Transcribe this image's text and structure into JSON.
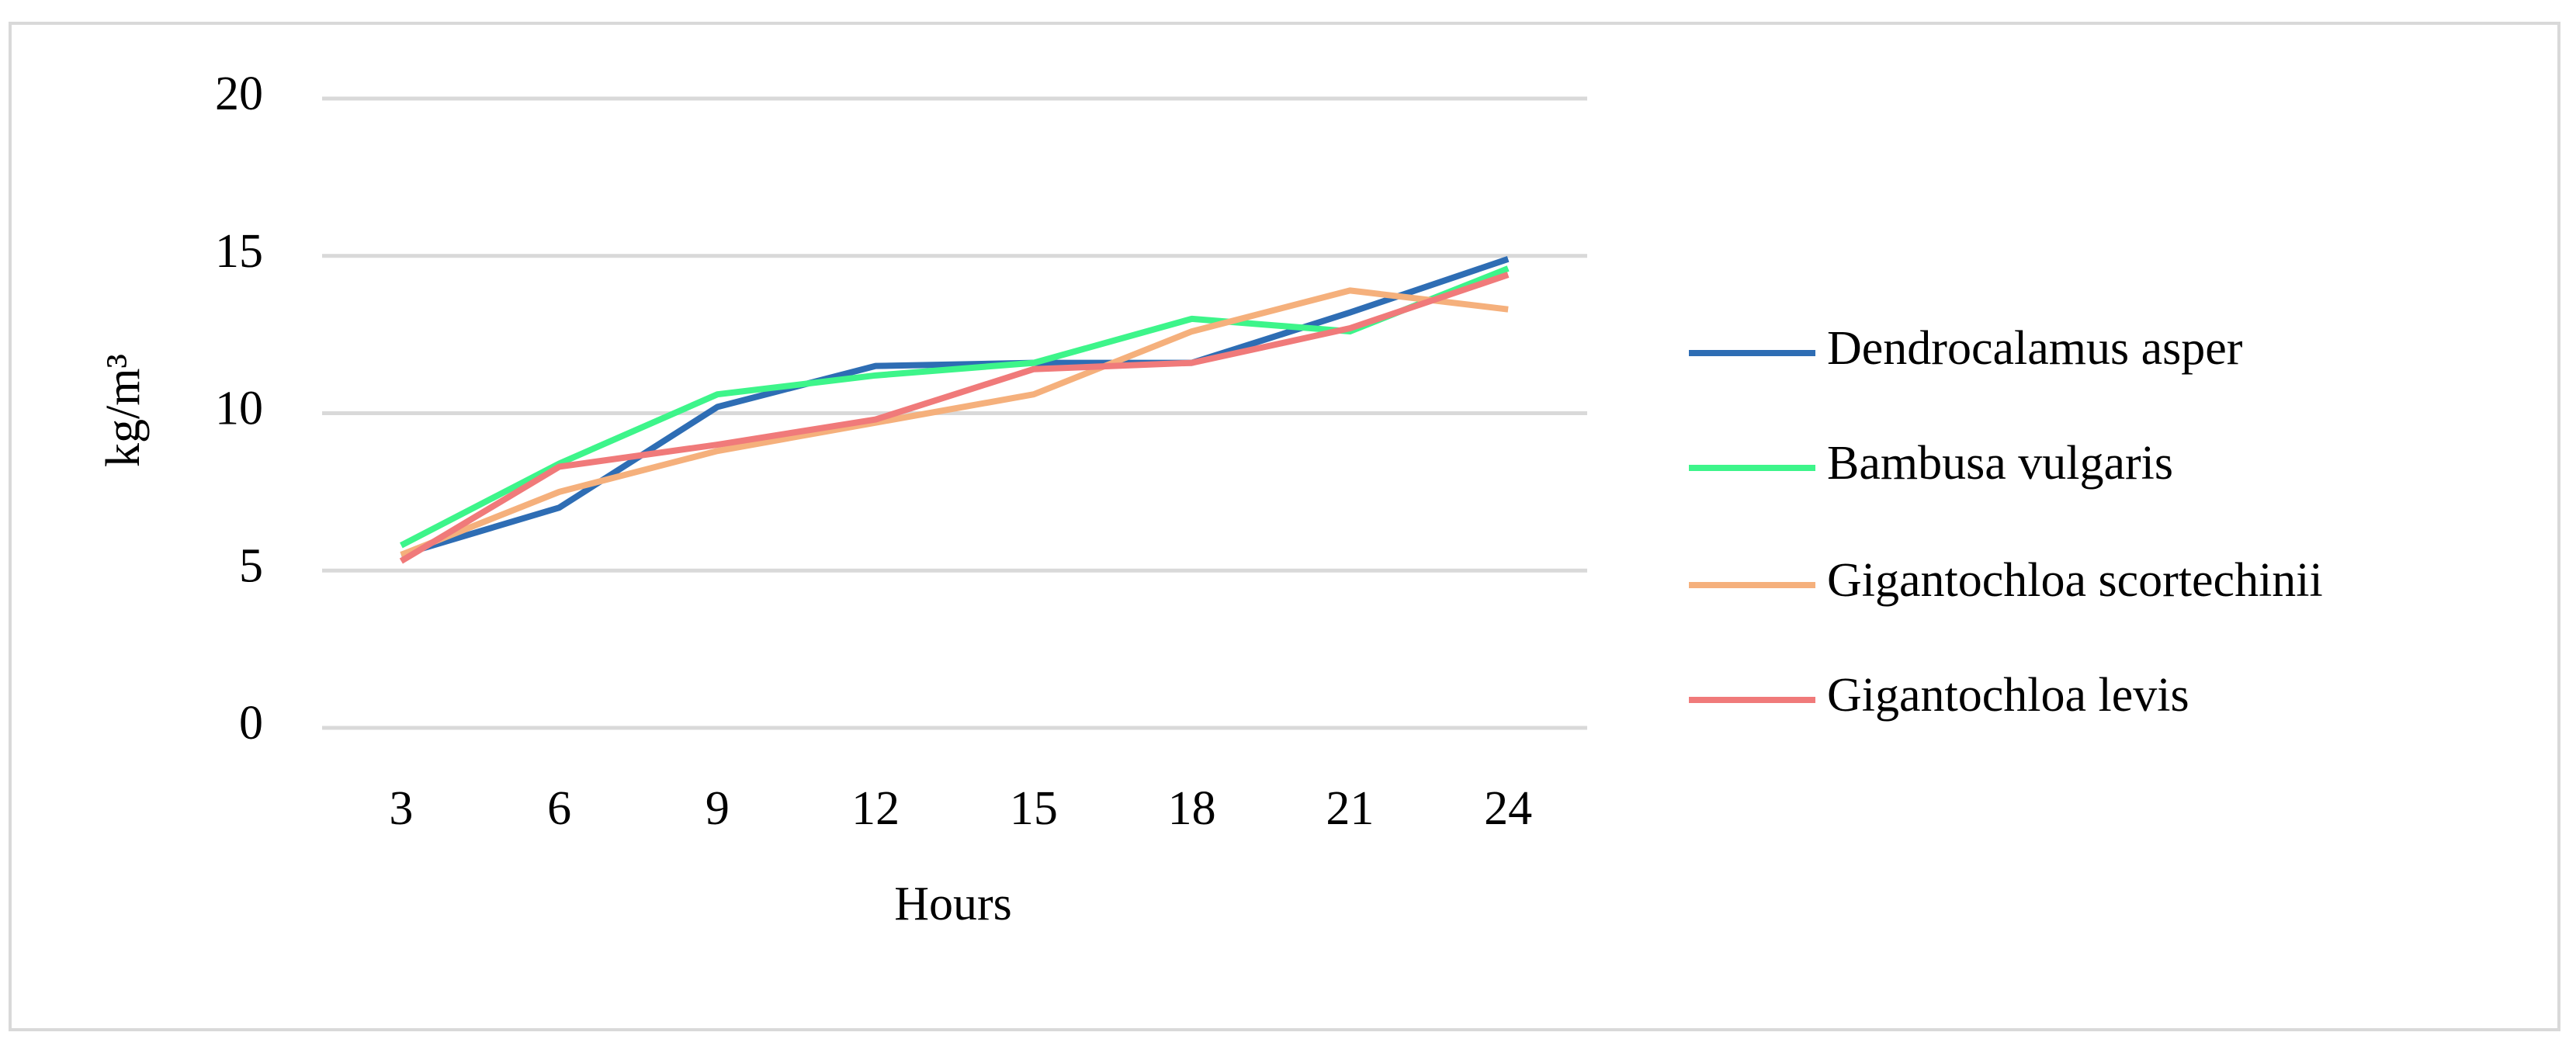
{
  "chart_data": {
    "type": "line",
    "x_label": "Hours",
    "y_label": "kg/m³",
    "categories": [
      "3",
      "6",
      "9",
      "12",
      "15",
      "18",
      "21",
      "24"
    ],
    "series": [
      {
        "name": "Dendrocalamus asper",
        "color": "#2e6db4",
        "values": [
          5.5,
          7.0,
          10.2,
          11.5,
          11.6,
          11.6,
          13.2,
          14.9
        ]
      },
      {
        "name": "Bambusa vulgaris",
        "color": "#3df58a",
        "values": [
          5.8,
          8.4,
          10.6,
          11.2,
          11.6,
          13.0,
          12.6,
          14.6
        ]
      },
      {
        "name": "Gigantochloa scortechinii",
        "color": "#f5b07c",
        "values": [
          5.5,
          7.5,
          8.8,
          9.7,
          10.6,
          12.6,
          13.9,
          13.3
        ]
      },
      {
        "name": "Gigantochloa levis",
        "color": "#f07a7a",
        "values": [
          5.3,
          8.3,
          9.0,
          9.8,
          11.4,
          11.6,
          12.7,
          14.4
        ]
      }
    ],
    "ylim": [
      0,
      20
    ],
    "yticks": [
      0,
      5,
      10,
      15,
      20
    ],
    "grid": true,
    "legend": "right"
  }
}
